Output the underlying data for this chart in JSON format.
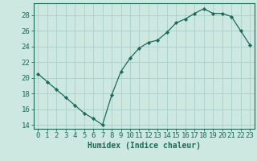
{
  "x": [
    0,
    1,
    2,
    3,
    4,
    5,
    6,
    7,
    8,
    9,
    10,
    11,
    12,
    13,
    14,
    15,
    16,
    17,
    18,
    19,
    20,
    21,
    22,
    23
  ],
  "y": [
    20.5,
    19.5,
    18.5,
    17.5,
    16.5,
    15.5,
    14.8,
    14.0,
    17.8,
    20.8,
    22.5,
    23.8,
    24.5,
    24.8,
    25.8,
    27.0,
    27.5,
    28.2,
    28.8,
    28.2,
    28.2,
    27.8,
    26.0,
    24.2
  ],
  "line_color": "#1a6b5a",
  "marker": "D",
  "marker_size": 2.2,
  "bg_color": "#cce8e0",
  "grid_color": "#aacfc7",
  "axis_color": "#1a6b5a",
  "xlabel": "Humidex (Indice chaleur)",
  "ylim": [
    13.5,
    29.5
  ],
  "xlim": [
    -0.5,
    23.5
  ],
  "yticks": [
    14,
    16,
    18,
    20,
    22,
    24,
    26,
    28
  ],
  "xticks": [
    0,
    1,
    2,
    3,
    4,
    5,
    6,
    7,
    8,
    9,
    10,
    11,
    12,
    13,
    14,
    15,
    16,
    17,
    18,
    19,
    20,
    21,
    22,
    23
  ],
  "xlabel_fontsize": 7,
  "tick_fontsize": 6.5,
  "font_family": "monospace"
}
